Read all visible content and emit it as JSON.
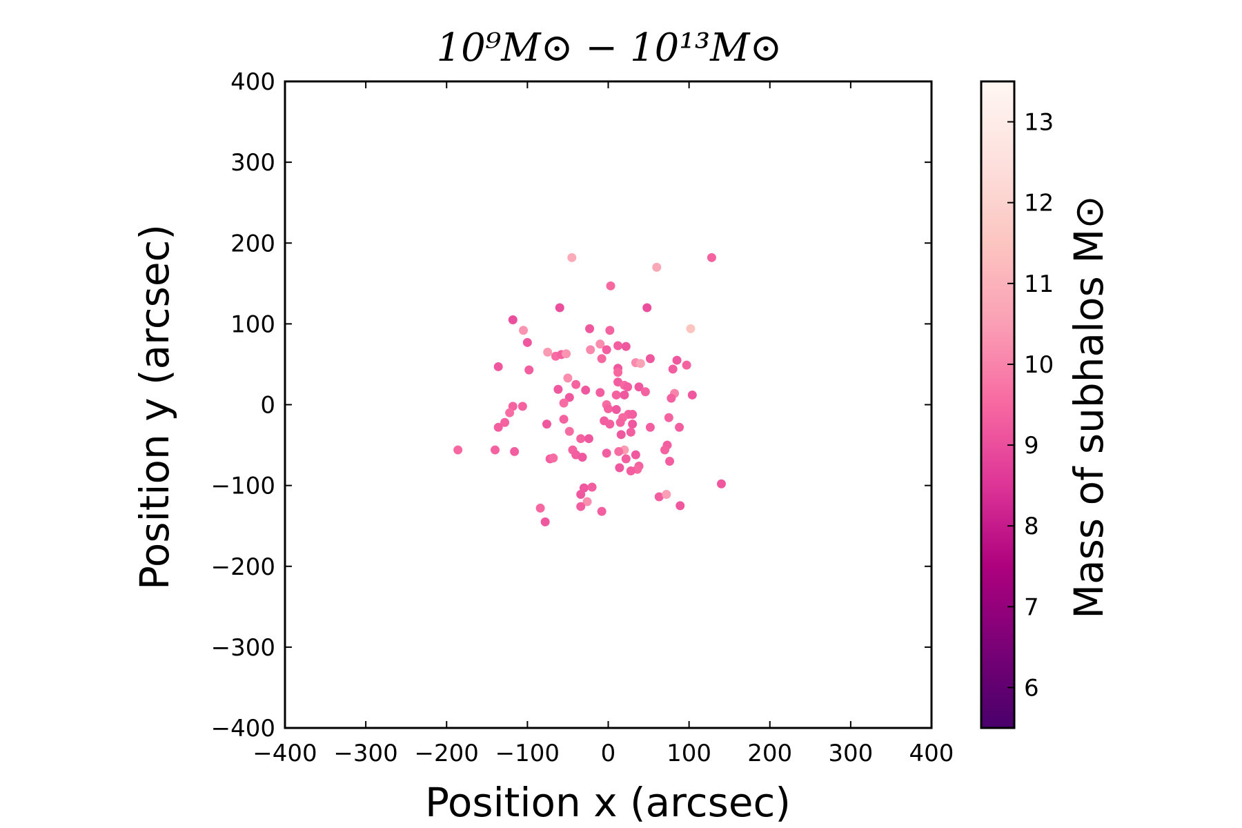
{
  "chart_data": {
    "type": "scatter",
    "title": "10⁹M⊙ − 10¹³M⊙",
    "xlabel": "Position x (arcsec)",
    "ylabel": "Position y (arcsec)",
    "xlim": [
      -400,
      400
    ],
    "ylim": [
      -400,
      400
    ],
    "xticks": [
      -400,
      -300,
      -200,
      -100,
      0,
      100,
      200,
      300,
      400
    ],
    "yticks": [
      -400,
      -300,
      -200,
      -100,
      0,
      100,
      200,
      300,
      400
    ],
    "xtick_labels": [
      "−400",
      "−300",
      "−200",
      "−100",
      "0",
      "100",
      "200",
      "300",
      "400"
    ],
    "ytick_labels": [
      "−400",
      "−300",
      "−200",
      "−100",
      "0",
      "100",
      "200",
      "300",
      "400"
    ],
    "grid": false,
    "colorbar": {
      "label": "Mass of subhalos M⊙",
      "range": [
        5.5,
        13.5
      ],
      "ticks": [
        6,
        7,
        8,
        9,
        10,
        11,
        12,
        13
      ],
      "tick_labels": [
        "6",
        "7",
        "8",
        "9",
        "10",
        "11",
        "12",
        "13"
      ],
      "colormap": "RdPu_r",
      "stops": [
        "#49006a",
        "#7a0177",
        "#ae017e",
        "#dd3497",
        "#f768a1",
        "#fa9fb5",
        "#fcc5c0",
        "#fde0dd",
        "#fff7f3"
      ]
    },
    "points": [
      {
        "x": -45,
        "y": 182,
        "m": 10.8
      },
      {
        "x": 60,
        "y": 170,
        "m": 10.7
      },
      {
        "x": 128,
        "y": 182,
        "m": 9.4
      },
      {
        "x": 3,
        "y": 147,
        "m": 9.5
      },
      {
        "x": -60,
        "y": 120,
        "m": 9.0
      },
      {
        "x": 48,
        "y": 120,
        "m": 9.0
      },
      {
        "x": -118,
        "y": 105,
        "m": 9.0
      },
      {
        "x": -105,
        "y": 92,
        "m": 10.3
      },
      {
        "x": -23,
        "y": 94,
        "m": 9.2
      },
      {
        "x": 2,
        "y": 92,
        "m": 9.4
      },
      {
        "x": 102,
        "y": 94,
        "m": 11.5
      },
      {
        "x": -100,
        "y": 77,
        "m": 9.2
      },
      {
        "x": -75,
        "y": 65,
        "m": 10.4
      },
      {
        "x": -65,
        "y": 60,
        "m": 9.6
      },
      {
        "x": -58,
        "y": 62,
        "m": 9.4
      },
      {
        "x": -52,
        "y": 63,
        "m": 10.3
      },
      {
        "x": -22,
        "y": 68,
        "m": 10.1
      },
      {
        "x": -10,
        "y": 75,
        "m": 10.2
      },
      {
        "x": -2,
        "y": 68,
        "m": 9.3
      },
      {
        "x": 12,
        "y": 73,
        "m": 9.3
      },
      {
        "x": 22,
        "y": 72,
        "m": 9.2
      },
      {
        "x": -8,
        "y": 57,
        "m": 9.5
      },
      {
        "x": 34,
        "y": 52,
        "m": 10.1
      },
      {
        "x": 40,
        "y": 51,
        "m": 10.6
      },
      {
        "x": 52,
        "y": 57,
        "m": 9.2
      },
      {
        "x": 85,
        "y": 55,
        "m": 9.2
      },
      {
        "x": 97,
        "y": 49,
        "m": 9.4
      },
      {
        "x": 80,
        "y": 44,
        "m": 9.3
      },
      {
        "x": -136,
        "y": 47,
        "m": 9.2
      },
      {
        "x": -98,
        "y": 43,
        "m": 9.3
      },
      {
        "x": 12,
        "y": 45,
        "m": 9.2
      },
      {
        "x": 12,
        "y": 40,
        "m": 9.5
      },
      {
        "x": -50,
        "y": 33,
        "m": 10.2
      },
      {
        "x": -40,
        "y": 25,
        "m": 9.4
      },
      {
        "x": 12,
        "y": 28,
        "m": 9.3
      },
      {
        "x": 20,
        "y": 24,
        "m": 9.5
      },
      {
        "x": 24,
        "y": 22,
        "m": 9.3
      },
      {
        "x": 38,
        "y": 22,
        "m": 9.2
      },
      {
        "x": 46,
        "y": 16,
        "m": 9.4
      },
      {
        "x": -62,
        "y": 19,
        "m": 9.2
      },
      {
        "x": -28,
        "y": 18,
        "m": 9.2
      },
      {
        "x": -10,
        "y": 15,
        "m": 9.3
      },
      {
        "x": 10,
        "y": 12,
        "m": 9.4
      },
      {
        "x": 20,
        "y": 12,
        "m": 9.2
      },
      {
        "x": 82,
        "y": 14,
        "m": 10.0
      },
      {
        "x": 78,
        "y": 8,
        "m": 9.4
      },
      {
        "x": 104,
        "y": 12,
        "m": 9.2
      },
      {
        "x": -48,
        "y": 9,
        "m": 9.2
      },
      {
        "x": -55,
        "y": 2,
        "m": 9.6
      },
      {
        "x": -118,
        "y": -2,
        "m": 9.4
      },
      {
        "x": -106,
        "y": -2,
        "m": 9.4
      },
      {
        "x": -122,
        "y": -10,
        "m": 9.6
      },
      {
        "x": -2,
        "y": 0,
        "m": 9.6
      },
      {
        "x": 0,
        "y": -5,
        "m": 9.4
      },
      {
        "x": 10,
        "y": -6,
        "m": 9.2
      },
      {
        "x": 25,
        "y": -12,
        "m": 9.4
      },
      {
        "x": 30,
        "y": -12,
        "m": 9.3
      },
      {
        "x": 18,
        "y": -16,
        "m": 9.5
      },
      {
        "x": -55,
        "y": -18,
        "m": 9.4
      },
      {
        "x": -5,
        "y": -20,
        "m": 9.3
      },
      {
        "x": 2,
        "y": -24,
        "m": 9.3
      },
      {
        "x": 15,
        "y": -22,
        "m": 9.4
      },
      {
        "x": 30,
        "y": -24,
        "m": 9.2
      },
      {
        "x": 52,
        "y": -28,
        "m": 9.3
      },
      {
        "x": 75,
        "y": -16,
        "m": 9.4
      },
      {
        "x": -128,
        "y": -22,
        "m": 9.4
      },
      {
        "x": -136,
        "y": -28,
        "m": 9.3
      },
      {
        "x": -76,
        "y": -24,
        "m": 9.2
      },
      {
        "x": -48,
        "y": -33,
        "m": 9.6
      },
      {
        "x": 16,
        "y": -37,
        "m": 9.2
      },
      {
        "x": 28,
        "y": -34,
        "m": 9.3
      },
      {
        "x": 88,
        "y": -28,
        "m": 9.3
      },
      {
        "x": -34,
        "y": -42,
        "m": 9.4
      },
      {
        "x": -24,
        "y": -42,
        "m": 9.2
      },
      {
        "x": 73,
        "y": -50,
        "m": 9.3
      },
      {
        "x": -186,
        "y": -56,
        "m": 9.5
      },
      {
        "x": -140,
        "y": -56,
        "m": 9.4
      },
      {
        "x": -116,
        "y": -58,
        "m": 9.3
      },
      {
        "x": -44,
        "y": -56,
        "m": 9.4
      },
      {
        "x": -40,
        "y": -62,
        "m": 9.3
      },
      {
        "x": -32,
        "y": -65,
        "m": 9.2
      },
      {
        "x": -2,
        "y": -60,
        "m": 9.3
      },
      {
        "x": 20,
        "y": -56,
        "m": 10.4
      },
      {
        "x": 13,
        "y": -58,
        "m": 9.6
      },
      {
        "x": 70,
        "y": -56,
        "m": 9.4
      },
      {
        "x": -72,
        "y": -67,
        "m": 9.3
      },
      {
        "x": -68,
        "y": -66,
        "m": 9.6
      },
      {
        "x": 22,
        "y": -67,
        "m": 9.3
      },
      {
        "x": 34,
        "y": -62,
        "m": 9.2
      },
      {
        "x": 76,
        "y": -70,
        "m": 9.3
      },
      {
        "x": 14,
        "y": -78,
        "m": 9.2
      },
      {
        "x": 38,
        "y": -76,
        "m": 9.4
      },
      {
        "x": 36,
        "y": -80,
        "m": 9.5
      },
      {
        "x": 28,
        "y": -82,
        "m": 9.3
      },
      {
        "x": 140,
        "y": -98,
        "m": 9.2
      },
      {
        "x": -30,
        "y": -103,
        "m": 9.2
      },
      {
        "x": -20,
        "y": -102,
        "m": 9.3
      },
      {
        "x": -34,
        "y": -111,
        "m": 9.2
      },
      {
        "x": -26,
        "y": -120,
        "m": 10.2
      },
      {
        "x": 63,
        "y": -114,
        "m": 9.3
      },
      {
        "x": 72,
        "y": -111,
        "m": 10.5
      },
      {
        "x": -34,
        "y": -126,
        "m": 9.3
      },
      {
        "x": 89,
        "y": -125,
        "m": 9.2
      },
      {
        "x": -84,
        "y": -128,
        "m": 9.5
      },
      {
        "x": -8,
        "y": -132,
        "m": 9.3
      },
      {
        "x": -78,
        "y": -145,
        "m": 9.2
      }
    ]
  }
}
